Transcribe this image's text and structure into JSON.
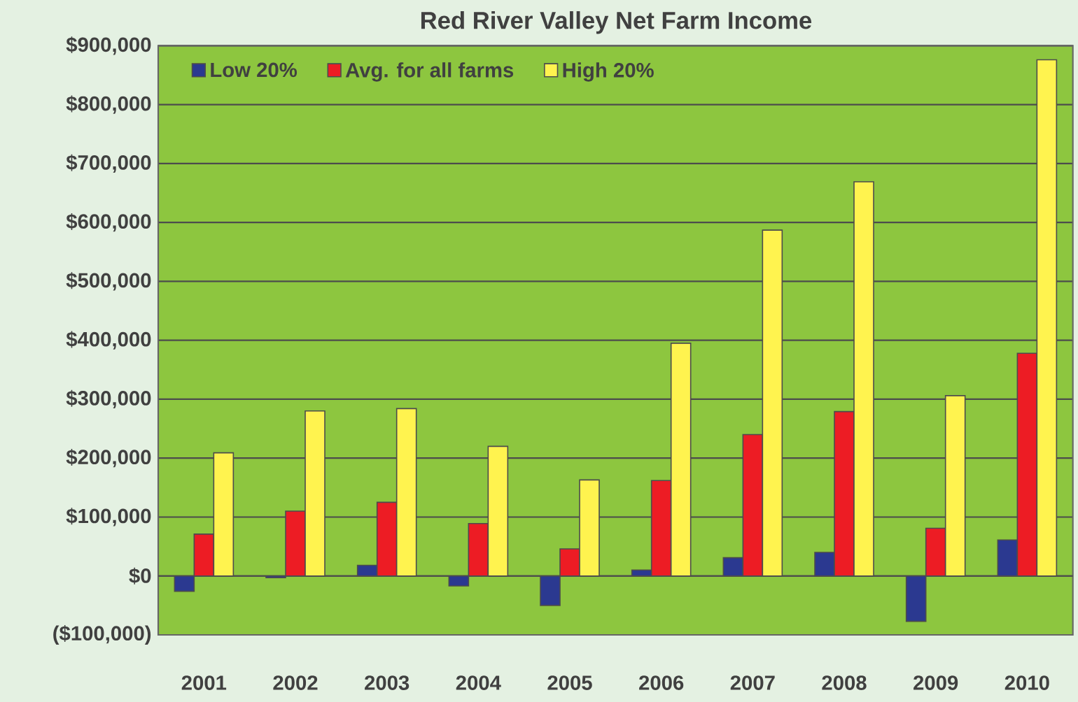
{
  "chart_data": {
    "type": "bar",
    "title": "Red River Valley Net Farm Income",
    "categories": [
      "2001",
      "2002",
      "2003",
      "2004",
      "2005",
      "2006",
      "2007",
      "2008",
      "2009",
      "2010"
    ],
    "series": [
      {
        "name": "Low 20%",
        "color": "#2b3990",
        "values": [
          -26000,
          -3000,
          18000,
          -17000,
          -50000,
          10000,
          31000,
          40000,
          -77000,
          61000
        ]
      },
      {
        "name": "Avg. for all farms",
        "color": "#ed1c24",
        "values": [
          71000,
          110000,
          125000,
          89000,
          46000,
          162000,
          240000,
          279000,
          81000,
          378000
        ]
      },
      {
        "name": "High 20%",
        "color": "#fff34f",
        "values": [
          209000,
          280000,
          284000,
          220000,
          163000,
          395000,
          587000,
          669000,
          306000,
          876000
        ]
      }
    ],
    "ylim": [
      -100000,
      900000
    ],
    "yticks": [
      {
        "value": -100000,
        "label": "($100,000)"
      },
      {
        "value": 0,
        "label": "$0"
      },
      {
        "value": 100000,
        "label": "$100,000"
      },
      {
        "value": 200000,
        "label": "$200,000"
      },
      {
        "value": 300000,
        "label": "$300,000"
      },
      {
        "value": 400000,
        "label": "$400,000"
      },
      {
        "value": 500000,
        "label": "$500,000"
      },
      {
        "value": 600000,
        "label": "$600,000"
      },
      {
        "value": 700000,
        "label": "$700,000"
      },
      {
        "value": 800000,
        "label": "$800,000"
      },
      {
        "value": 900000,
        "label": "$900,000"
      }
    ],
    "grid": "y",
    "legend": "top left"
  }
}
